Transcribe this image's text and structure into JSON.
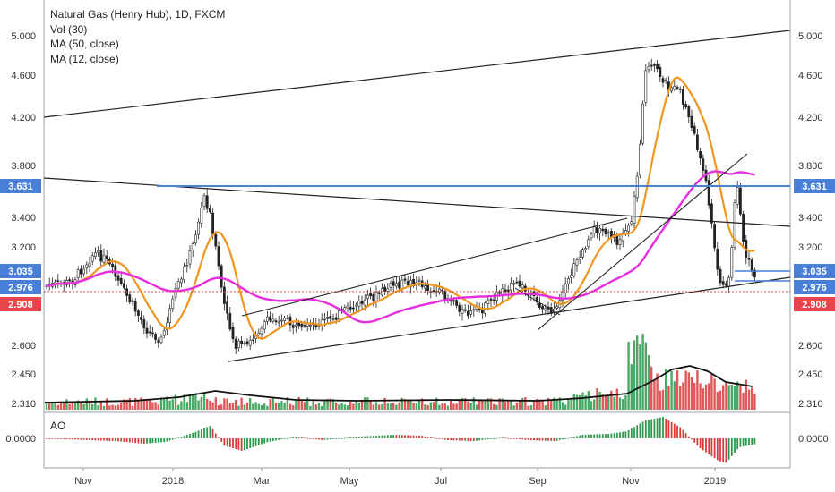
{
  "legend": {
    "title": "Natural Gas (Henry Hub), 1D, FXCM",
    "vol": "Vol (30)",
    "ma50": "MA (50, close)",
    "ma12": "MA (12, close)"
  },
  "ao_label": "AO",
  "price_axis": {
    "ticks": [
      "5.000",
      "4.600",
      "4.200",
      "3.800",
      "3.400",
      "3.200",
      "2.600",
      "2.450",
      "2.310"
    ],
    "badges": [
      {
        "value": "3.631",
        "color": "#4a7fd8"
      },
      {
        "value": "3.035",
        "color": "#4a7fd8"
      },
      {
        "value": "2.976",
        "color": "#4a7fd8"
      },
      {
        "value": "2.908",
        "color": "#e8444c"
      }
    ]
  },
  "ao_axis": {
    "left": "0.0000",
    "right": "0.0000"
  },
  "time_axis": [
    "Nov",
    "2018",
    "Mar",
    "May",
    "Jul",
    "Sep",
    "Nov",
    "2019"
  ],
  "colors": {
    "up": "#2b9a4a",
    "down": "#d93a3a",
    "ma12": "#f0961e",
    "ma50": "#e62ee0",
    "hline": "#4a7fd8",
    "closeline": "#e8444c"
  }
}
